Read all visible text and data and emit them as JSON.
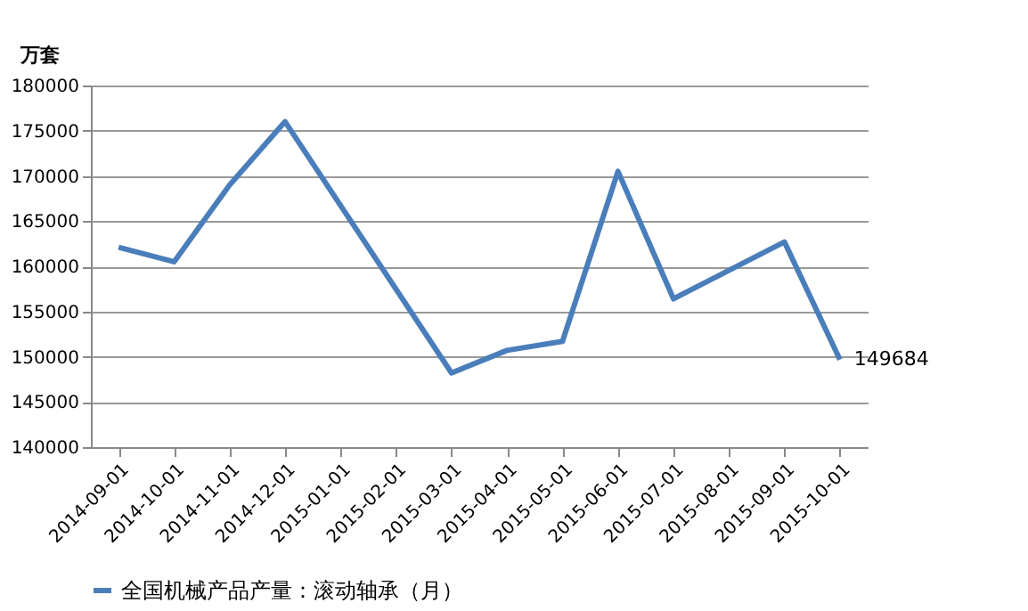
{
  "chart_data": {
    "type": "line",
    "ylabel": "万套",
    "categories": [
      "2014-09-01",
      "2014-10-01",
      "2014-11-01",
      "2014-12-01",
      "2015-01-01",
      "2015-02-01",
      "2015-03-01",
      "2015-04-01",
      "2015-05-01",
      "2015-06-01",
      "2015-07-01",
      "2015-08-01",
      "2015-09-01",
      "2015-10-01"
    ],
    "series": [
      {
        "name": "全国机械产品产量：滚动轴承（月）",
        "color": "#4a7ebb",
        "values": [
          162100,
          160500,
          169000,
          176000,
          null,
          null,
          148200,
          150700,
          151700,
          170500,
          156400,
          null,
          162700,
          149684
        ],
        "value_labels": [
          null,
          null,
          null,
          null,
          null,
          null,
          null,
          null,
          null,
          null,
          null,
          null,
          null,
          "149684"
        ]
      }
    ],
    "ylim": [
      140000,
      180000
    ],
    "yticks": [
      140000,
      145000,
      150000,
      155000,
      160000,
      165000,
      170000,
      175000,
      180000
    ],
    "grid": "y",
    "legend": "bottom",
    "marker": "none",
    "line_style": "solid"
  }
}
